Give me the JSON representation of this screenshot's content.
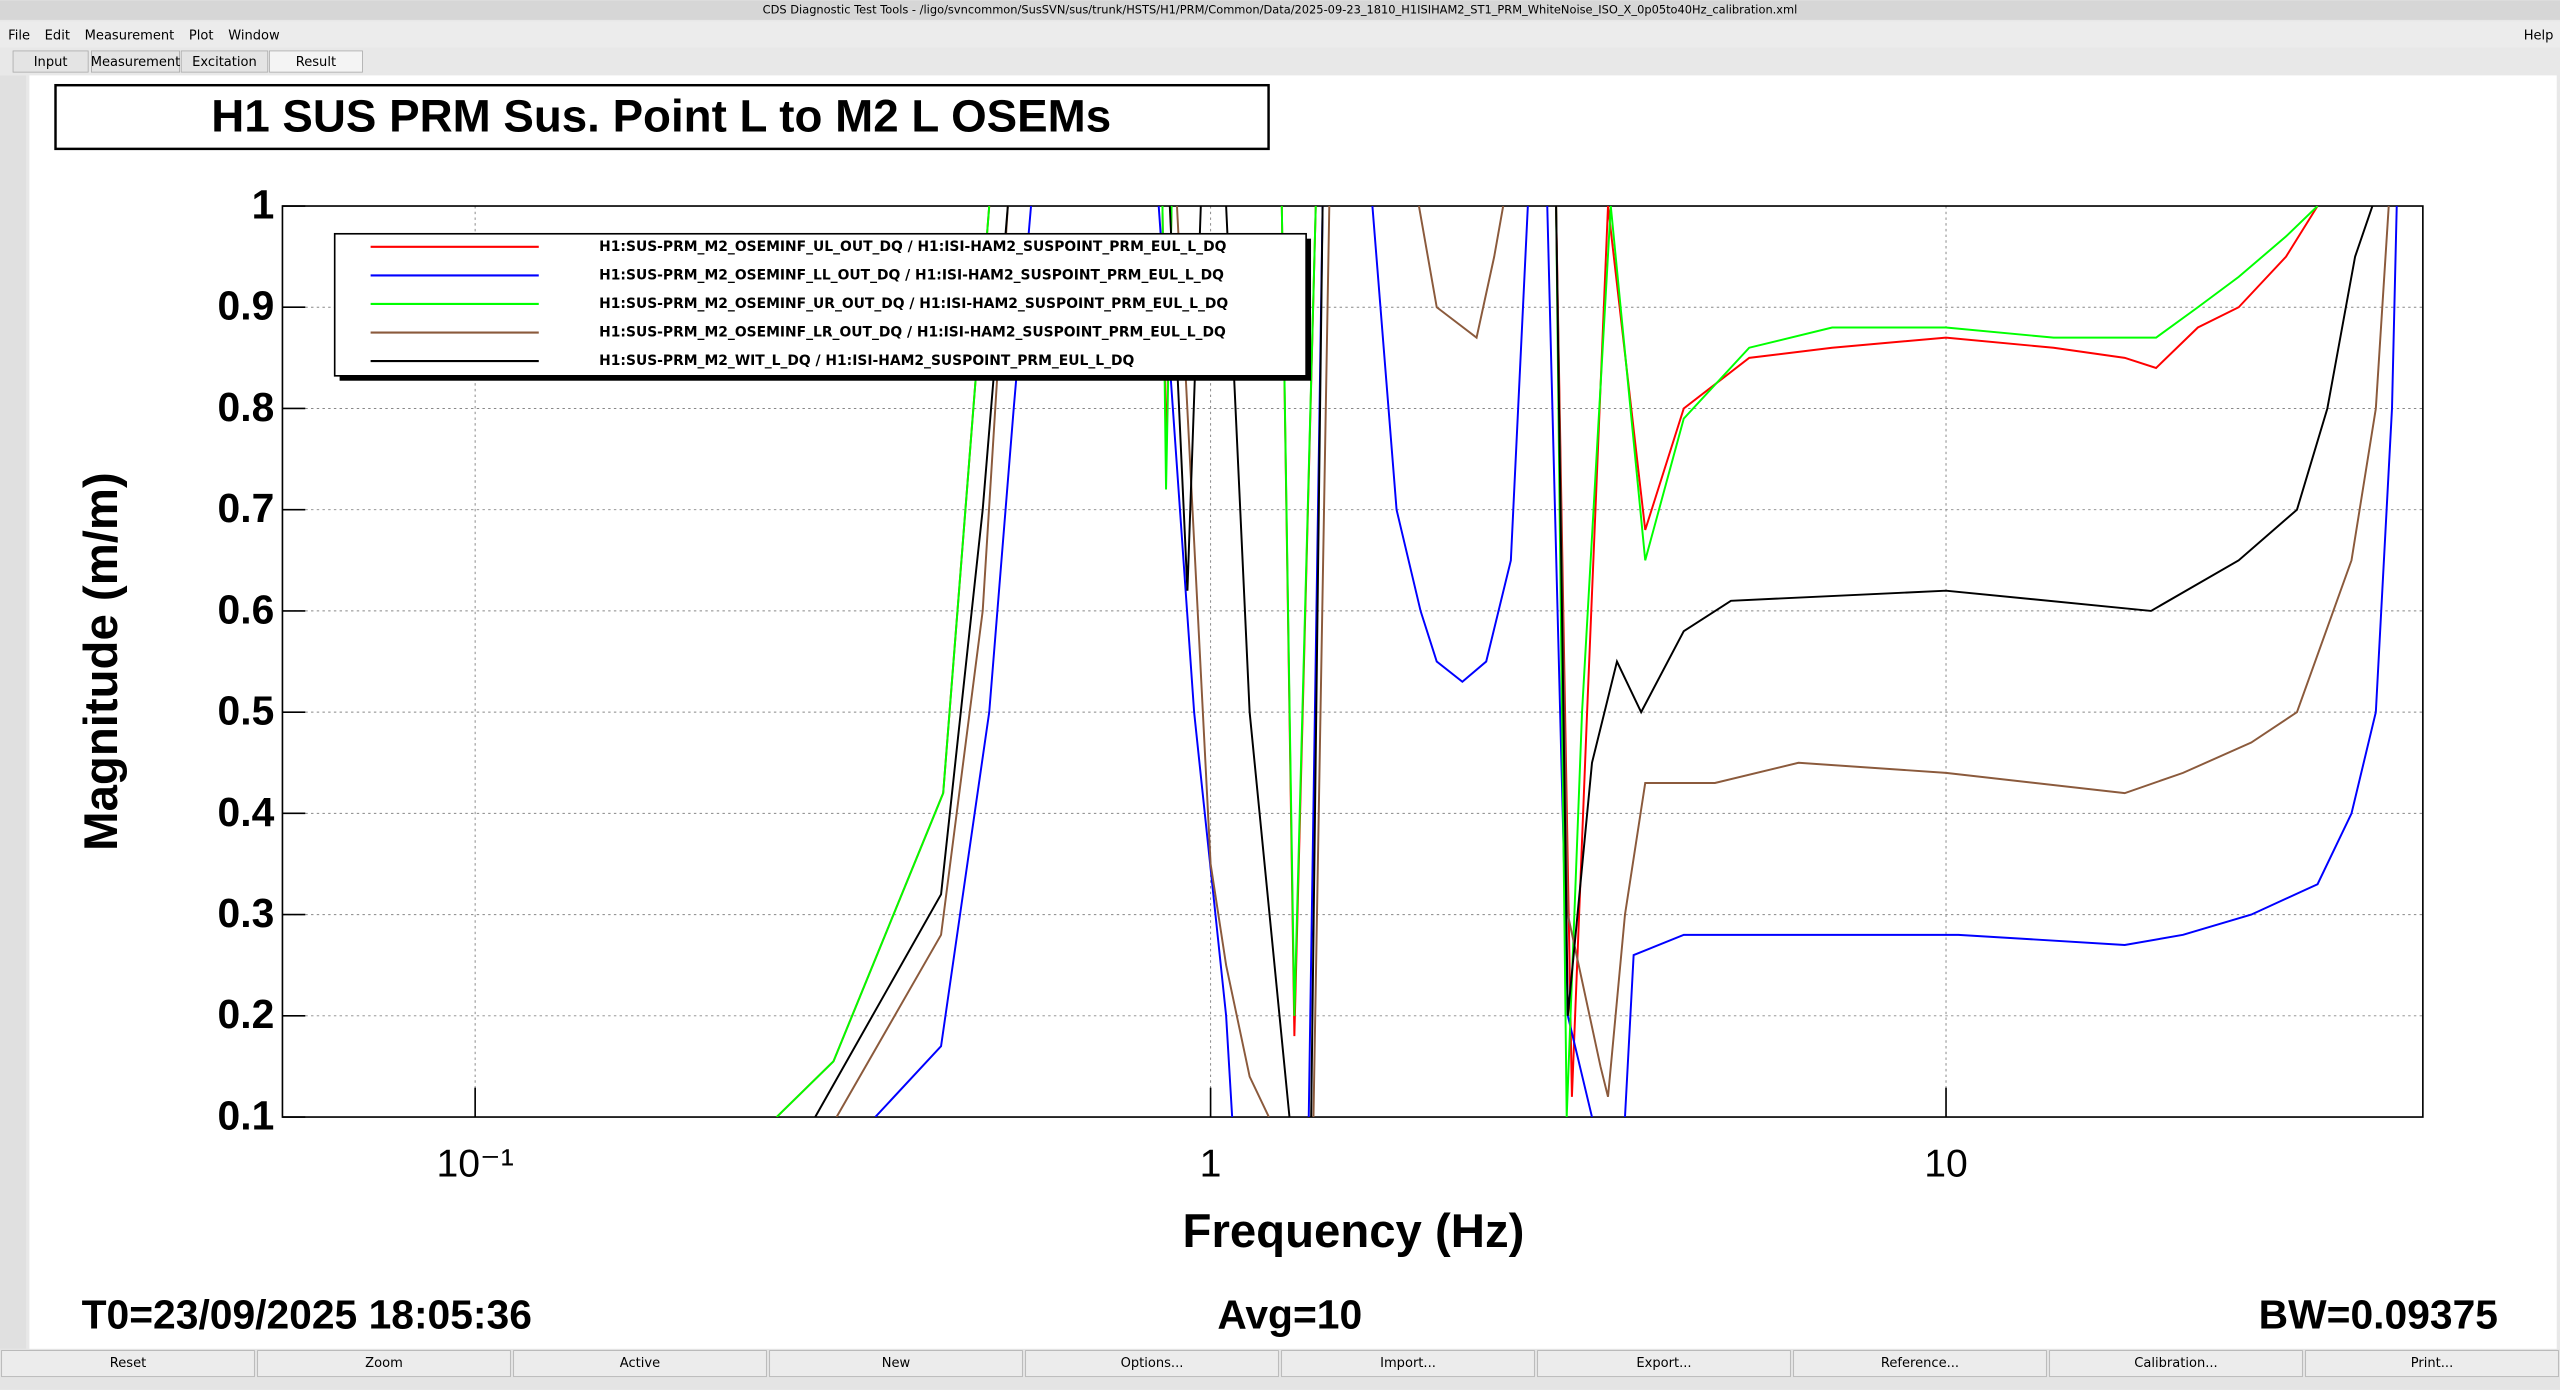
{
  "window_title": "CDS Diagnostic Test Tools - /ligo/svncommon/SusSVN/sus/trunk/HSTS/H1/PRM/Common/Data/2025-09-23_1810_H1ISIHAM2_ST1_PRM_WhiteNoise_ISO_X_0p05to40Hz_calibration.xml",
  "menu": [
    "File",
    "Edit",
    "Measurement",
    "Plot",
    "Window"
  ],
  "help": "Help",
  "tabs": [
    "Input",
    "Measurement",
    "Excitation",
    "Result"
  ],
  "chart_data": {
    "type": "line",
    "title": "H1 SUS PRM Sus. Point L to M2 L OSEMs",
    "x_label": "Frequency (Hz)",
    "y_label": "Magnitude (m/m)",
    "log_x": true,
    "grid": true,
    "legend": "upper left",
    "xlim": [
      0.0547,
      44.5
    ],
    "ylim": [
      0.1,
      1
    ],
    "xticks": [
      {
        "value": 0.1,
        "label": "10⁻¹"
      },
      1,
      10
    ],
    "yticks": [
      0.1,
      0.2,
      0.3,
      0.4,
      0.5,
      0.6,
      0.7,
      0.8,
      0.9,
      1
    ],
    "series": [
      {
        "name": "H1:SUS-PRM_M2_OSEMINF_UL_OUT_DQ / H1:ISI-HAM2_SUSPOINT_PRM_EUL_L_DQ",
        "color": "#ff0000",
        "x": [
          0.257,
          0.307,
          0.433,
          0.5,
          0.7,
          0.86,
          0.87,
          0.885,
          1.0,
          1.25,
          1.3,
          1.39,
          2.0,
          2.95,
          3.1,
          3.25,
          3.47,
          3.9,
          4.4,
          5.4,
          7,
          10,
          14,
          17.5,
          19.3,
          22,
          25,
          29,
          32
        ],
        "values": [
          0.1,
          0.155,
          0.42,
          1,
          null,
          1,
          0.75,
          1,
          null,
          1,
          0.18,
          1,
          null,
          1,
          0.12,
          0.5,
          1,
          0.68,
          0.8,
          0.85,
          0.86,
          0.87,
          0.86,
          0.85,
          0.84,
          0.88,
          0.9,
          0.95,
          1
        ]
      },
      {
        "name": "H1:SUS-PRM_M2_OSEMINF_LL_OUT_DQ / H1:ISI-HAM2_SUSPOINT_PRM_EUL_L_DQ",
        "color": "#0000ff",
        "x": [
          0.35,
          0.43,
          0.5,
          0.54,
          0.57,
          0.7,
          0.85,
          0.95,
          1.05,
          1.07,
          1.2,
          1.36,
          1.42,
          1.55,
          1.66,
          1.79,
          1.93,
          2.03,
          2.2,
          2.37,
          2.56,
          2.7,
          2.8,
          2.87,
          3.06,
          3.3,
          3.5,
          3.66,
          3.76,
          4.4,
          6.3,
          10.4,
          17.5,
          21,
          26,
          32,
          35.6,
          38.4,
          40.4,
          41
        ],
        "values": [
          0.1,
          0.17,
          0.5,
          0.8,
          1,
          null,
          1,
          0.5,
          0.2,
          0.1,
          null,
          0.1,
          1,
          null,
          1,
          0.7,
          0.6,
          0.55,
          0.53,
          0.55,
          0.65,
          1,
          null,
          1,
          0.2,
          0.1,
          null,
          0.1,
          0.26,
          0.28,
          0.28,
          0.28,
          0.27,
          0.28,
          0.3,
          0.33,
          0.4,
          0.5,
          0.8,
          1
        ]
      },
      {
        "name": "H1:SUS-PRM_M2_OSEMINF_UR_OUT_DQ / H1:ISI-HAM2_SUSPOINT_PRM_EUL_L_DQ",
        "color": "#00ff00",
        "x": [
          0.257,
          0.307,
          0.433,
          0.5,
          0.7,
          0.86,
          0.87,
          0.885,
          1.0,
          1.25,
          1.3,
          1.39,
          2.0,
          2.95,
          3.05,
          3.2,
          3.5,
          3.9,
          4.4,
          5.4,
          7,
          10,
          14,
          17.5,
          19.3,
          22,
          25,
          29,
          32
        ],
        "values": [
          0.1,
          0.155,
          0.42,
          1,
          null,
          1,
          0.72,
          1,
          null,
          1,
          0.2,
          1,
          null,
          1,
          0.1,
          0.5,
          1,
          0.65,
          0.79,
          0.86,
          0.88,
          0.88,
          0.87,
          0.87,
          0.87,
          0.9,
          0.93,
          0.97,
          1
        ]
      },
      {
        "name": "H1:SUS-PRM_M2_OSEMINF_LR_OUT_DQ / H1:ISI-HAM2_SUSPOINT_PRM_EUL_L_DQ",
        "color": "#8b5a3c",
        "x": [
          0.31,
          0.43,
          0.49,
          0.53,
          0.7,
          0.9,
          1.0,
          1.05,
          1.13,
          1.2,
          1.3,
          1.38,
          1.45,
          1.7,
          1.92,
          2.03,
          2.3,
          2.43,
          2.5,
          2.7,
          2.95,
          3.06,
          3.39,
          3.47,
          3.66,
          3.9,
          4.85,
          6.3,
          10,
          17.5,
          21,
          26,
          30,
          35.6,
          38.4,
          40
        ],
        "values": [
          0.1,
          0.28,
          0.6,
          1,
          null,
          1,
          0.35,
          0.25,
          0.14,
          0.1,
          null,
          0.1,
          1,
          null,
          1,
          0.9,
          0.87,
          0.95,
          1,
          null,
          1,
          0.3,
          0.15,
          0.12,
          0.3,
          0.43,
          0.43,
          0.45,
          0.44,
          0.42,
          0.44,
          0.47,
          0.5,
          0.65,
          0.8,
          1
        ]
      },
      {
        "name": "H1:SUS-PRM_M2_WIT_L_DQ / H1:ISI-HAM2_SUSPOINT_PRM_EUL_L_DQ",
        "color": "#000000",
        "x": [
          0.29,
          0.43,
          0.49,
          0.53,
          0.7,
          0.88,
          0.93,
          0.97,
          1.0,
          1.05,
          1.13,
          1.28,
          1.33,
          1.37,
          1.42,
          2.0,
          2.95,
          3.06,
          3.3,
          3.57,
          3.85,
          4.4,
          5.1,
          10,
          19,
          25,
          30,
          33,
          36,
          38
        ],
        "values": [
          0.1,
          0.32,
          0.7,
          1,
          null,
          1,
          0.62,
          1,
          null,
          1,
          0.5,
          0.1,
          null,
          0.1,
          1,
          null,
          1,
          0.2,
          0.45,
          0.55,
          0.5,
          0.58,
          0.61,
          0.62,
          0.6,
          0.65,
          0.7,
          0.8,
          0.95,
          1
        ]
      }
    ]
  },
  "footer": {
    "t0": "T0=23/09/2025 18:05:36",
    "avg": "Avg=10",
    "bw": "BW=0.09375"
  },
  "buttons": [
    "Reset",
    "Zoom",
    "Active",
    "New",
    "Options...",
    "Import...",
    "Export...",
    "Reference...",
    "Calibration...",
    "Print..."
  ]
}
